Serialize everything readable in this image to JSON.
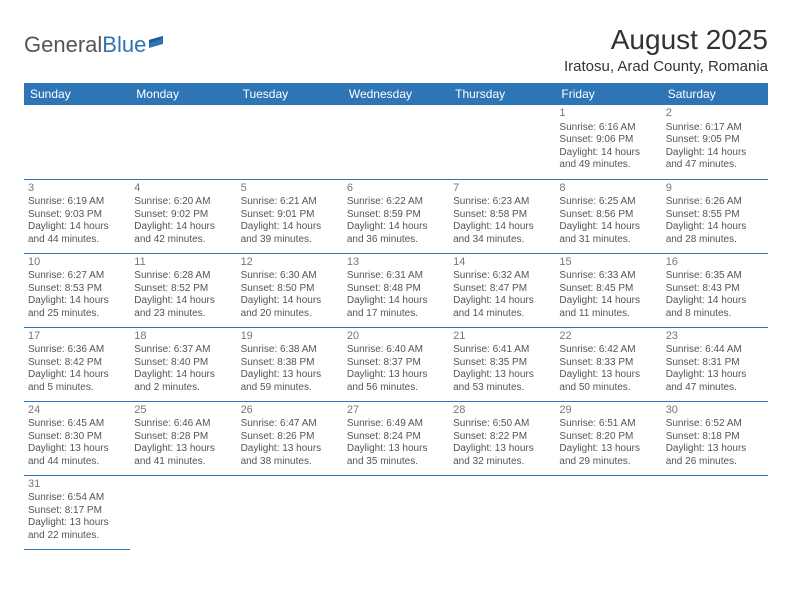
{
  "logo": {
    "part1": "General",
    "part2": "Blue"
  },
  "title": "August 2025",
  "location": "Iratosu, Arad County, Romania",
  "colors": {
    "header_bg": "#2e75b6",
    "header_fg": "#ffffff",
    "border": "#2e75b6",
    "text": "#555555"
  },
  "weekdays": [
    "Sunday",
    "Monday",
    "Tuesday",
    "Wednesday",
    "Thursday",
    "Friday",
    "Saturday"
  ],
  "weeks": [
    [
      null,
      null,
      null,
      null,
      null,
      {
        "d": "1",
        "sr": "Sunrise: 6:16 AM",
        "ss": "Sunset: 9:06 PM",
        "dl1": "Daylight: 14 hours",
        "dl2": "and 49 minutes."
      },
      {
        "d": "2",
        "sr": "Sunrise: 6:17 AM",
        "ss": "Sunset: 9:05 PM",
        "dl1": "Daylight: 14 hours",
        "dl2": "and 47 minutes."
      }
    ],
    [
      {
        "d": "3",
        "sr": "Sunrise: 6:19 AM",
        "ss": "Sunset: 9:03 PM",
        "dl1": "Daylight: 14 hours",
        "dl2": "and 44 minutes."
      },
      {
        "d": "4",
        "sr": "Sunrise: 6:20 AM",
        "ss": "Sunset: 9:02 PM",
        "dl1": "Daylight: 14 hours",
        "dl2": "and 42 minutes."
      },
      {
        "d": "5",
        "sr": "Sunrise: 6:21 AM",
        "ss": "Sunset: 9:01 PM",
        "dl1": "Daylight: 14 hours",
        "dl2": "and 39 minutes."
      },
      {
        "d": "6",
        "sr": "Sunrise: 6:22 AM",
        "ss": "Sunset: 8:59 PM",
        "dl1": "Daylight: 14 hours",
        "dl2": "and 36 minutes."
      },
      {
        "d": "7",
        "sr": "Sunrise: 6:23 AM",
        "ss": "Sunset: 8:58 PM",
        "dl1": "Daylight: 14 hours",
        "dl2": "and 34 minutes."
      },
      {
        "d": "8",
        "sr": "Sunrise: 6:25 AM",
        "ss": "Sunset: 8:56 PM",
        "dl1": "Daylight: 14 hours",
        "dl2": "and 31 minutes."
      },
      {
        "d": "9",
        "sr": "Sunrise: 6:26 AM",
        "ss": "Sunset: 8:55 PM",
        "dl1": "Daylight: 14 hours",
        "dl2": "and 28 minutes."
      }
    ],
    [
      {
        "d": "10",
        "sr": "Sunrise: 6:27 AM",
        "ss": "Sunset: 8:53 PM",
        "dl1": "Daylight: 14 hours",
        "dl2": "and 25 minutes."
      },
      {
        "d": "11",
        "sr": "Sunrise: 6:28 AM",
        "ss": "Sunset: 8:52 PM",
        "dl1": "Daylight: 14 hours",
        "dl2": "and 23 minutes."
      },
      {
        "d": "12",
        "sr": "Sunrise: 6:30 AM",
        "ss": "Sunset: 8:50 PM",
        "dl1": "Daylight: 14 hours",
        "dl2": "and 20 minutes."
      },
      {
        "d": "13",
        "sr": "Sunrise: 6:31 AM",
        "ss": "Sunset: 8:48 PM",
        "dl1": "Daylight: 14 hours",
        "dl2": "and 17 minutes."
      },
      {
        "d": "14",
        "sr": "Sunrise: 6:32 AM",
        "ss": "Sunset: 8:47 PM",
        "dl1": "Daylight: 14 hours",
        "dl2": "and 14 minutes."
      },
      {
        "d": "15",
        "sr": "Sunrise: 6:33 AM",
        "ss": "Sunset: 8:45 PM",
        "dl1": "Daylight: 14 hours",
        "dl2": "and 11 minutes."
      },
      {
        "d": "16",
        "sr": "Sunrise: 6:35 AM",
        "ss": "Sunset: 8:43 PM",
        "dl1": "Daylight: 14 hours",
        "dl2": "and 8 minutes."
      }
    ],
    [
      {
        "d": "17",
        "sr": "Sunrise: 6:36 AM",
        "ss": "Sunset: 8:42 PM",
        "dl1": "Daylight: 14 hours",
        "dl2": "and 5 minutes."
      },
      {
        "d": "18",
        "sr": "Sunrise: 6:37 AM",
        "ss": "Sunset: 8:40 PM",
        "dl1": "Daylight: 14 hours",
        "dl2": "and 2 minutes."
      },
      {
        "d": "19",
        "sr": "Sunrise: 6:38 AM",
        "ss": "Sunset: 8:38 PM",
        "dl1": "Daylight: 13 hours",
        "dl2": "and 59 minutes."
      },
      {
        "d": "20",
        "sr": "Sunrise: 6:40 AM",
        "ss": "Sunset: 8:37 PM",
        "dl1": "Daylight: 13 hours",
        "dl2": "and 56 minutes."
      },
      {
        "d": "21",
        "sr": "Sunrise: 6:41 AM",
        "ss": "Sunset: 8:35 PM",
        "dl1": "Daylight: 13 hours",
        "dl2": "and 53 minutes."
      },
      {
        "d": "22",
        "sr": "Sunrise: 6:42 AM",
        "ss": "Sunset: 8:33 PM",
        "dl1": "Daylight: 13 hours",
        "dl2": "and 50 minutes."
      },
      {
        "d": "23",
        "sr": "Sunrise: 6:44 AM",
        "ss": "Sunset: 8:31 PM",
        "dl1": "Daylight: 13 hours",
        "dl2": "and 47 minutes."
      }
    ],
    [
      {
        "d": "24",
        "sr": "Sunrise: 6:45 AM",
        "ss": "Sunset: 8:30 PM",
        "dl1": "Daylight: 13 hours",
        "dl2": "and 44 minutes."
      },
      {
        "d": "25",
        "sr": "Sunrise: 6:46 AM",
        "ss": "Sunset: 8:28 PM",
        "dl1": "Daylight: 13 hours",
        "dl2": "and 41 minutes."
      },
      {
        "d": "26",
        "sr": "Sunrise: 6:47 AM",
        "ss": "Sunset: 8:26 PM",
        "dl1": "Daylight: 13 hours",
        "dl2": "and 38 minutes."
      },
      {
        "d": "27",
        "sr": "Sunrise: 6:49 AM",
        "ss": "Sunset: 8:24 PM",
        "dl1": "Daylight: 13 hours",
        "dl2": "and 35 minutes."
      },
      {
        "d": "28",
        "sr": "Sunrise: 6:50 AM",
        "ss": "Sunset: 8:22 PM",
        "dl1": "Daylight: 13 hours",
        "dl2": "and 32 minutes."
      },
      {
        "d": "29",
        "sr": "Sunrise: 6:51 AM",
        "ss": "Sunset: 8:20 PM",
        "dl1": "Daylight: 13 hours",
        "dl2": "and 29 minutes."
      },
      {
        "d": "30",
        "sr": "Sunrise: 6:52 AM",
        "ss": "Sunset: 8:18 PM",
        "dl1": "Daylight: 13 hours",
        "dl2": "and 26 minutes."
      }
    ],
    [
      {
        "d": "31",
        "sr": "Sunrise: 6:54 AM",
        "ss": "Sunset: 8:17 PM",
        "dl1": "Daylight: 13 hours",
        "dl2": "and 22 minutes."
      },
      null,
      null,
      null,
      null,
      null,
      null
    ]
  ]
}
